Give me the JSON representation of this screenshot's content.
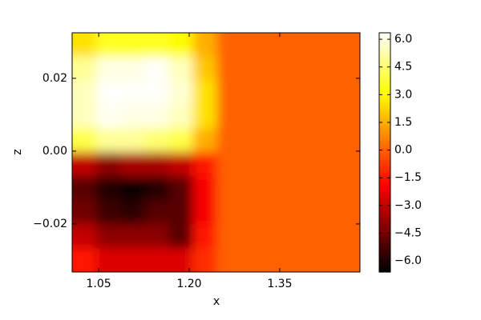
{
  "chart_data": {
    "type": "heatmap",
    "colormap": "hot",
    "xlabel": "x",
    "ylabel": "z",
    "x": [
      1.026,
      1.066,
      1.106,
      1.146,
      1.186,
      1.226,
      1.266,
      1.306,
      1.346,
      1.386,
      1.426,
      1.466
    ],
    "y": [
      0.0292,
      0.0226,
      0.0161,
      0.0095,
      0.0029,
      -0.0036,
      -0.0102,
      -0.0168,
      -0.0234,
      -0.0299
    ],
    "z": [
      [
        2.5,
        3.5,
        3.5,
        3.5,
        3.0,
        1.5,
        0,
        0,
        0,
        0,
        0,
        0
      ],
      [
        5.0,
        6.0,
        6.0,
        6.3,
        5.5,
        2.0,
        0,
        0,
        0,
        0,
        0,
        0
      ],
      [
        5.5,
        6.3,
        6.3,
        6.3,
        5.8,
        2.5,
        0,
        0,
        0,
        0,
        0,
        0
      ],
      [
        5.5,
        6.2,
        6.0,
        6.0,
        5.5,
        2.5,
        0,
        0,
        0,
        0,
        0,
        0
      ],
      [
        4.0,
        5.0,
        5.0,
        4.5,
        4.0,
        1.5,
        0,
        0,
        0,
        0,
        0,
        0
      ],
      [
        -3.0,
        -4.0,
        -3.5,
        -3.5,
        -3.0,
        -1.5,
        0,
        0,
        0,
        0,
        0,
        0
      ],
      [
        -5.0,
        -6.0,
        -6.3,
        -6.0,
        -5.0,
        -2.0,
        0,
        0,
        0,
        0,
        0,
        0
      ],
      [
        -4.5,
        -5.5,
        -5.8,
        -5.0,
        -5.0,
        -2.0,
        0,
        0,
        0,
        0,
        0,
        0
      ],
      [
        -3.0,
        -4.0,
        -4.0,
        -4.0,
        -5.0,
        -1.5,
        0,
        0,
        0,
        0,
        0,
        0
      ],
      [
        -1.5,
        -2.5,
        -2.5,
        -2.5,
        -2.5,
        -1.0,
        0,
        0,
        0,
        0,
        0,
        0
      ]
    ],
    "xlim": [
      1.006,
      1.483
    ],
    "ylim": [
      -0.0332,
      0.0325
    ],
    "xticks": [
      1.05,
      {
        "value": 1.2,
        "label": "1.20"
      },
      1.35
    ],
    "yticks": [
      {
        "value": -0.02,
        "label": "−0.02"
      },
      {
        "value": 0,
        "label": "0.00"
      },
      0.02
    ],
    "clim": [
      -6.6,
      6.35
    ],
    "cticks": [
      {
        "value": -6,
        "label": "−6.0"
      },
      {
        "value": -4.5,
        "label": "−4.5"
      },
      {
        "value": -3,
        "label": "−3.0"
      },
      {
        "value": -1.5,
        "label": "−1.5"
      },
      {
        "value": 0,
        "label": "0.0"
      },
      {
        "value": 1.5,
        "label": "1.5"
      },
      {
        "value": 3,
        "label": "3.0"
      },
      {
        "value": 4.5,
        "label": "4.5"
      },
      {
        "value": 6,
        "label": "6.0"
      }
    ]
  }
}
